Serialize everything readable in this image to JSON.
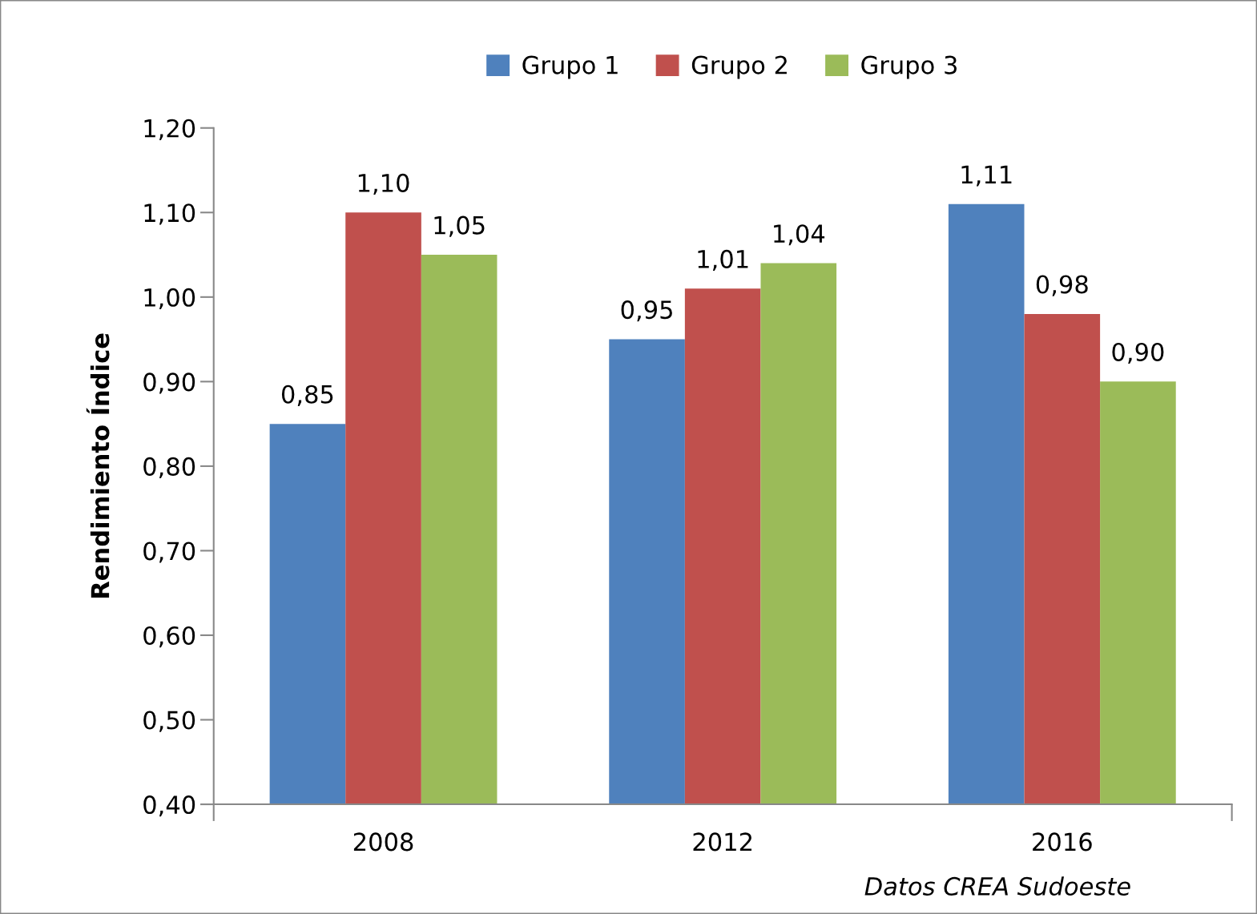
{
  "chart_data": {
    "type": "bar",
    "ylabel": "Rendimiento Índice",
    "categories": [
      "2008",
      "2012",
      "2016"
    ],
    "series": [
      {
        "name": "Grupo 1",
        "color": "#4f81bd",
        "values": [
          0.85,
          0.95,
          1.11
        ],
        "value_labels": [
          "0,85",
          "0,95",
          "1,11"
        ]
      },
      {
        "name": "Grupo 2",
        "color": "#c0504d",
        "values": [
          1.1,
          1.01,
          0.98
        ],
        "value_labels": [
          "1,10",
          "1,01",
          "0,98"
        ]
      },
      {
        "name": "Grupo 3",
        "color": "#9bbb59",
        "values": [
          1.05,
          1.04,
          0.9
        ],
        "value_labels": [
          "1,05",
          "1,04",
          "0,90"
        ]
      }
    ],
    "ylim": [
      0.4,
      1.2
    ],
    "yticks": [
      {
        "value": 0.4,
        "label": "0,40"
      },
      {
        "value": 0.5,
        "label": "0,50"
      },
      {
        "value": 0.6,
        "label": "0,60"
      },
      {
        "value": 0.7,
        "label": "0,70"
      },
      {
        "value": 0.8,
        "label": "0,80"
      },
      {
        "value": 0.9,
        "label": "0,90"
      },
      {
        "value": 1.0,
        "label": "1,00"
      },
      {
        "value": 1.1,
        "label": "1,10"
      },
      {
        "value": 1.2,
        "label": "1,20"
      }
    ],
    "grid": false,
    "legend": "top",
    "annotations": [
      "Datos CREA Sudoeste"
    ]
  }
}
